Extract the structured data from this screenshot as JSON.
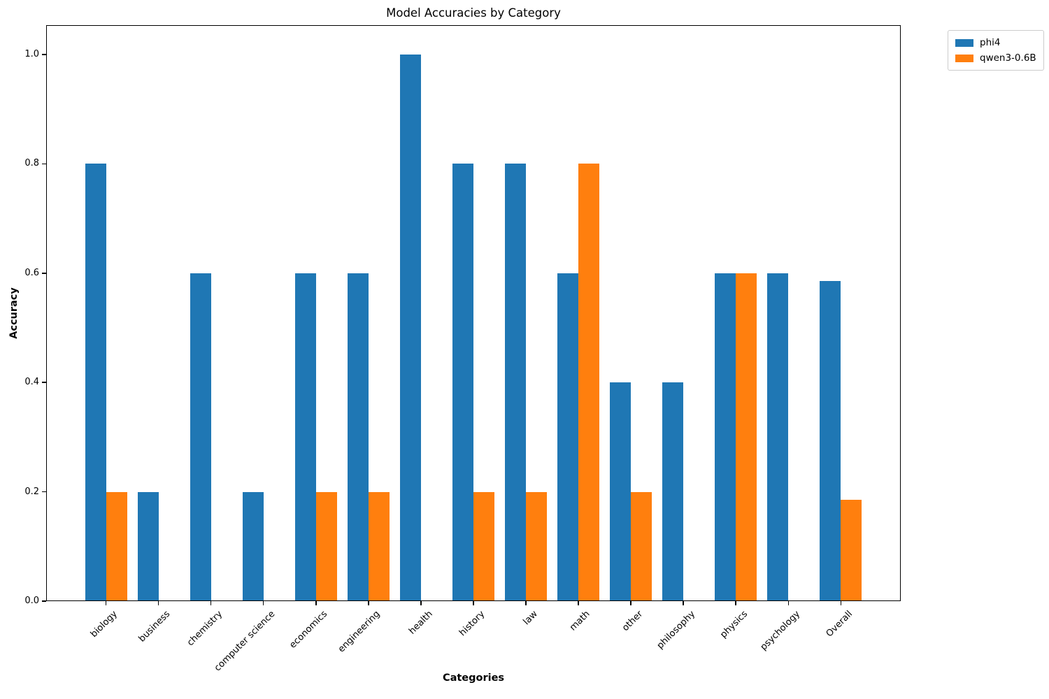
{
  "chart_data": {
    "type": "bar",
    "title": "Model Accuracies by Category",
    "xlabel": "Categories",
    "ylabel": "Accuracy",
    "categories": [
      "biology",
      "business",
      "chemistry",
      "computer science",
      "economics",
      "engineering",
      "health",
      "history",
      "law",
      "math",
      "other",
      "philosophy",
      "physics",
      "psychology",
      "Overall"
    ],
    "series": [
      {
        "name": "phi4",
        "color": "#1f77b4",
        "values": [
          0.8,
          0.2,
          0.6,
          0.2,
          0.6,
          0.6,
          1.0,
          0.8,
          0.8,
          0.6,
          0.4,
          0.4,
          0.6,
          0.6,
          0.586
        ]
      },
      {
        "name": "qwen3-0.6B",
        "color": "#ff7f0e",
        "values": [
          0.2,
          0.0,
          0.0,
          0.0,
          0.2,
          0.2,
          0.0,
          0.2,
          0.2,
          0.8,
          0.2,
          0.0,
          0.6,
          0.0,
          0.186
        ]
      }
    ],
    "ylim": [
      0,
      1.05
    ],
    "yticks": [
      0.0,
      0.2,
      0.4,
      0.6,
      0.8,
      1.0
    ],
    "ytick_labels": [
      "0.0",
      "0.2",
      "0.4",
      "0.6",
      "0.8",
      "1.0"
    ],
    "grid": false,
    "legend_position": "upper-right-outside",
    "bar_width_fraction": 0.4
  }
}
